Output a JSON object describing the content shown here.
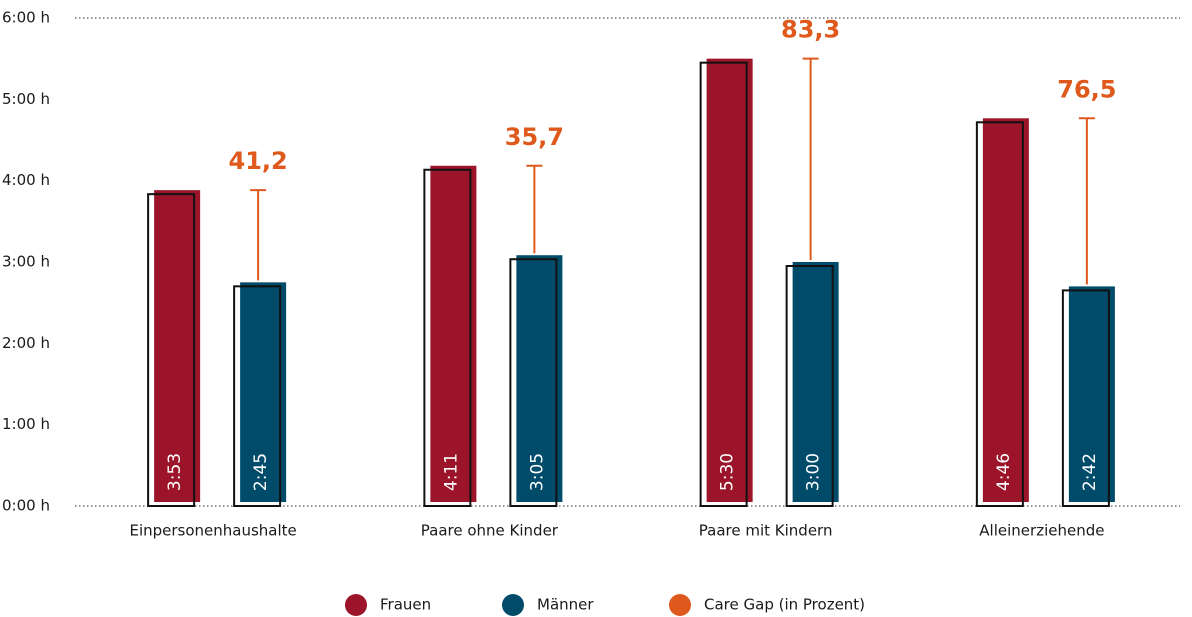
{
  "chart_data": {
    "type": "bar",
    "categories": [
      "Einpersonenhaushalte",
      "Paare ohne Kinder",
      "Paare mit Kindern",
      "Alleinerziehende"
    ],
    "series": [
      {
        "name": "Frauen",
        "color": "#9b1429",
        "values": [
          3.8833,
          4.1833,
          5.5,
          4.7667
        ],
        "value_labels": [
          "3:53",
          "4:11",
          "5:30",
          "4:46"
        ]
      },
      {
        "name": "Männer",
        "color": "#004b6a",
        "values": [
          2.75,
          3.0833,
          3.0,
          2.7
        ],
        "value_labels": [
          "2:45",
          "3:05",
          "3:00",
          "2:42"
        ]
      },
      {
        "name": "Care Gap (in Prozent)",
        "color": "#e0591c",
        "values": [
          41.2,
          35.7,
          83.3,
          76.5
        ],
        "value_labels": [
          "41,2",
          "35,7",
          "83,3",
          "76,5"
        ]
      }
    ],
    "ylim": [
      0,
      6
    ],
    "yticks": [
      {
        "value": 0,
        "label": "0:00 h"
      },
      {
        "value": 1,
        "label": "1:00 h"
      },
      {
        "value": 2,
        "label": "2:00 h"
      },
      {
        "value": 3,
        "label": "3:00 h"
      },
      {
        "value": 4,
        "label": "4:00 h"
      },
      {
        "value": 5,
        "label": "5:00 h"
      },
      {
        "value": 6,
        "label": "6:00 h"
      }
    ],
    "grid": false
  }
}
